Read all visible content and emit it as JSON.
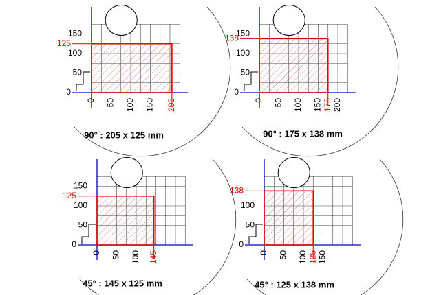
{
  "panels": [
    {
      "caption": "90° : 205 x 125 mm",
      "xticks": [
        0,
        50,
        100,
        150
      ],
      "yticks": [
        0,
        50,
        100,
        150
      ],
      "cut_width": 205,
      "cut_height": 125
    },
    {
      "caption": "90° : 175 x 138 mm",
      "xticks": [
        0,
        50,
        100,
        150,
        200
      ],
      "yticks": [
        0,
        50,
        100,
        150
      ],
      "cut_width": 175,
      "cut_height": 138
    },
    {
      "caption": "45° : 145 x 125 mm",
      "xticks": [
        0,
        50,
        100
      ],
      "yticks": [
        0,
        50,
        100,
        150
      ],
      "cut_width": 145,
      "cut_height": 125
    },
    {
      "caption": "45° : 125 x 138 mm",
      "xticks": [
        0,
        50,
        100,
        150
      ],
      "yticks": [
        0,
        50,
        100
      ],
      "cut_width": 125,
      "cut_height": 138
    }
  ]
}
